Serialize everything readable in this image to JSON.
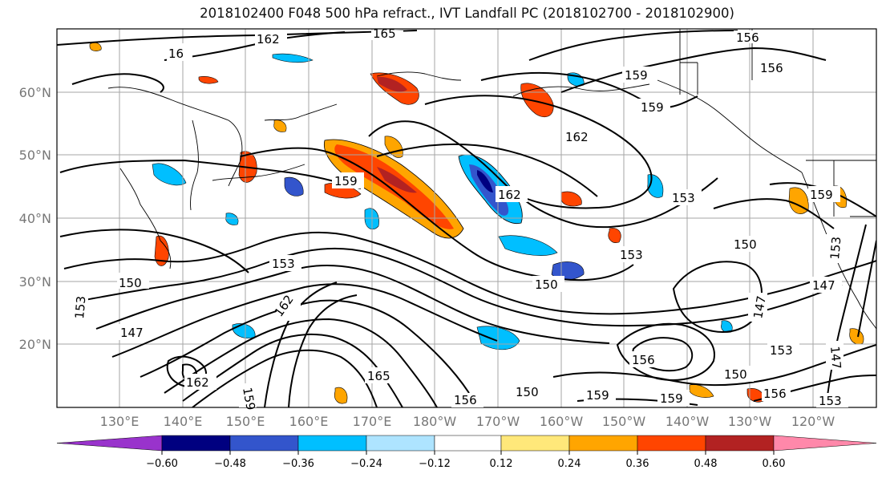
{
  "title": "2018102400 F048 500 hPa refract., IVT Landfall PC (2018102700 - 2018102900)",
  "map": {
    "lat_labels": [
      "60°N",
      "50°N",
      "40°N",
      "30°N",
      "20°N"
    ],
    "lon_labels": [
      "130°E",
      "140°E",
      "150°E",
      "160°E",
      "170°E",
      "180°W",
      "170°W",
      "160°W",
      "150°W",
      "140°W",
      "130°W",
      "120°W"
    ],
    "contour_labels": [
      "162",
      "165",
      "156",
      "156",
      "159",
      "159",
      "162",
      "159",
      "162",
      "153",
      "159",
      "150",
      "153",
      "153",
      "150",
      "147",
      "147",
      "150",
      "153",
      "147",
      "162",
      "165",
      "159",
      "156",
      "162",
      "156",
      "159",
      "150",
      "159",
      "153",
      "150",
      "153",
      "156",
      "153",
      "16",
      "147"
    ]
  },
  "colorbar": {
    "tick_labels": [
      "−0.60",
      "−0.48",
      "−0.36",
      "−0.24",
      "−0.12",
      "0.12",
      "0.24",
      "0.36",
      "0.48",
      "0.60"
    ],
    "colors": [
      "#9933cc",
      "#000080",
      "#3355cc",
      "#00bfff",
      "#aee4ff",
      "#ffffff",
      "#ffe87a",
      "#ffa500",
      "#ff4500",
      "#b22222",
      "#ff88aa"
    ]
  }
}
